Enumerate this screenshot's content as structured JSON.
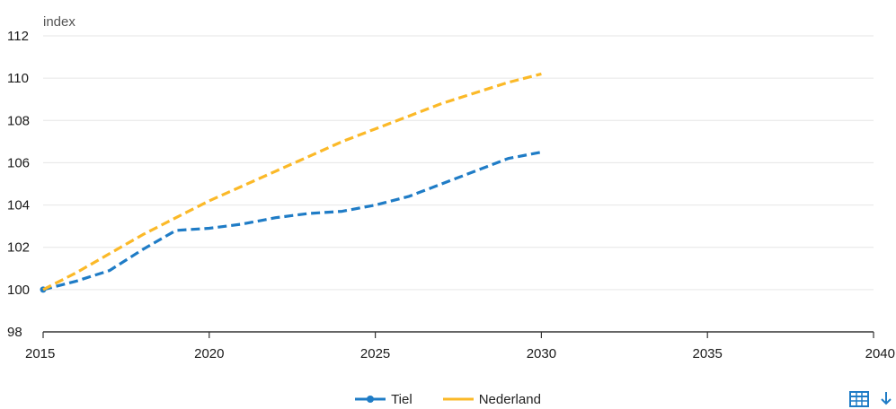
{
  "colors": {
    "tiel": "#1f7cc6",
    "nederland": "#fbb928",
    "grid": "#e6e6e6",
    "axis": "#333333",
    "icon": "#1f7cc6"
  },
  "icons": {
    "table": "table-icon",
    "download": "download-icon"
  },
  "chart_data": {
    "type": "line",
    "title": "",
    "xlabel": "",
    "ylabel": "index",
    "xlim": [
      2015,
      2040
    ],
    "ylim": [
      98,
      112
    ],
    "xticks": [
      "2015",
      "2020",
      "2025",
      "2030",
      "2035",
      "2040"
    ],
    "yticks": [
      "98",
      "100",
      "102",
      "104",
      "106",
      "108",
      "110",
      "112"
    ],
    "grid": true,
    "legend_position": "bottom",
    "x": [
      2015,
      2016,
      2017,
      2018,
      2019,
      2020,
      2021,
      2022,
      2023,
      2024,
      2025,
      2026,
      2027,
      2028,
      2029,
      2030
    ],
    "series": [
      {
        "name": "Tiel",
        "color": "#1f7cc6",
        "style": "dashed",
        "values": [
          100.0,
          100.4,
          100.9,
          101.9,
          102.8,
          102.9,
          103.1,
          103.4,
          103.6,
          103.7,
          104.0,
          104.4,
          105.0,
          105.6,
          106.2,
          106.5
        ]
      },
      {
        "name": "Nederland",
        "color": "#fbb928",
        "style": "dashed",
        "values": [
          100.0,
          100.8,
          101.7,
          102.6,
          103.4,
          104.2,
          104.9,
          105.6,
          106.3,
          107.0,
          107.6,
          108.2,
          108.8,
          109.3,
          109.8,
          110.2
        ]
      }
    ]
  }
}
